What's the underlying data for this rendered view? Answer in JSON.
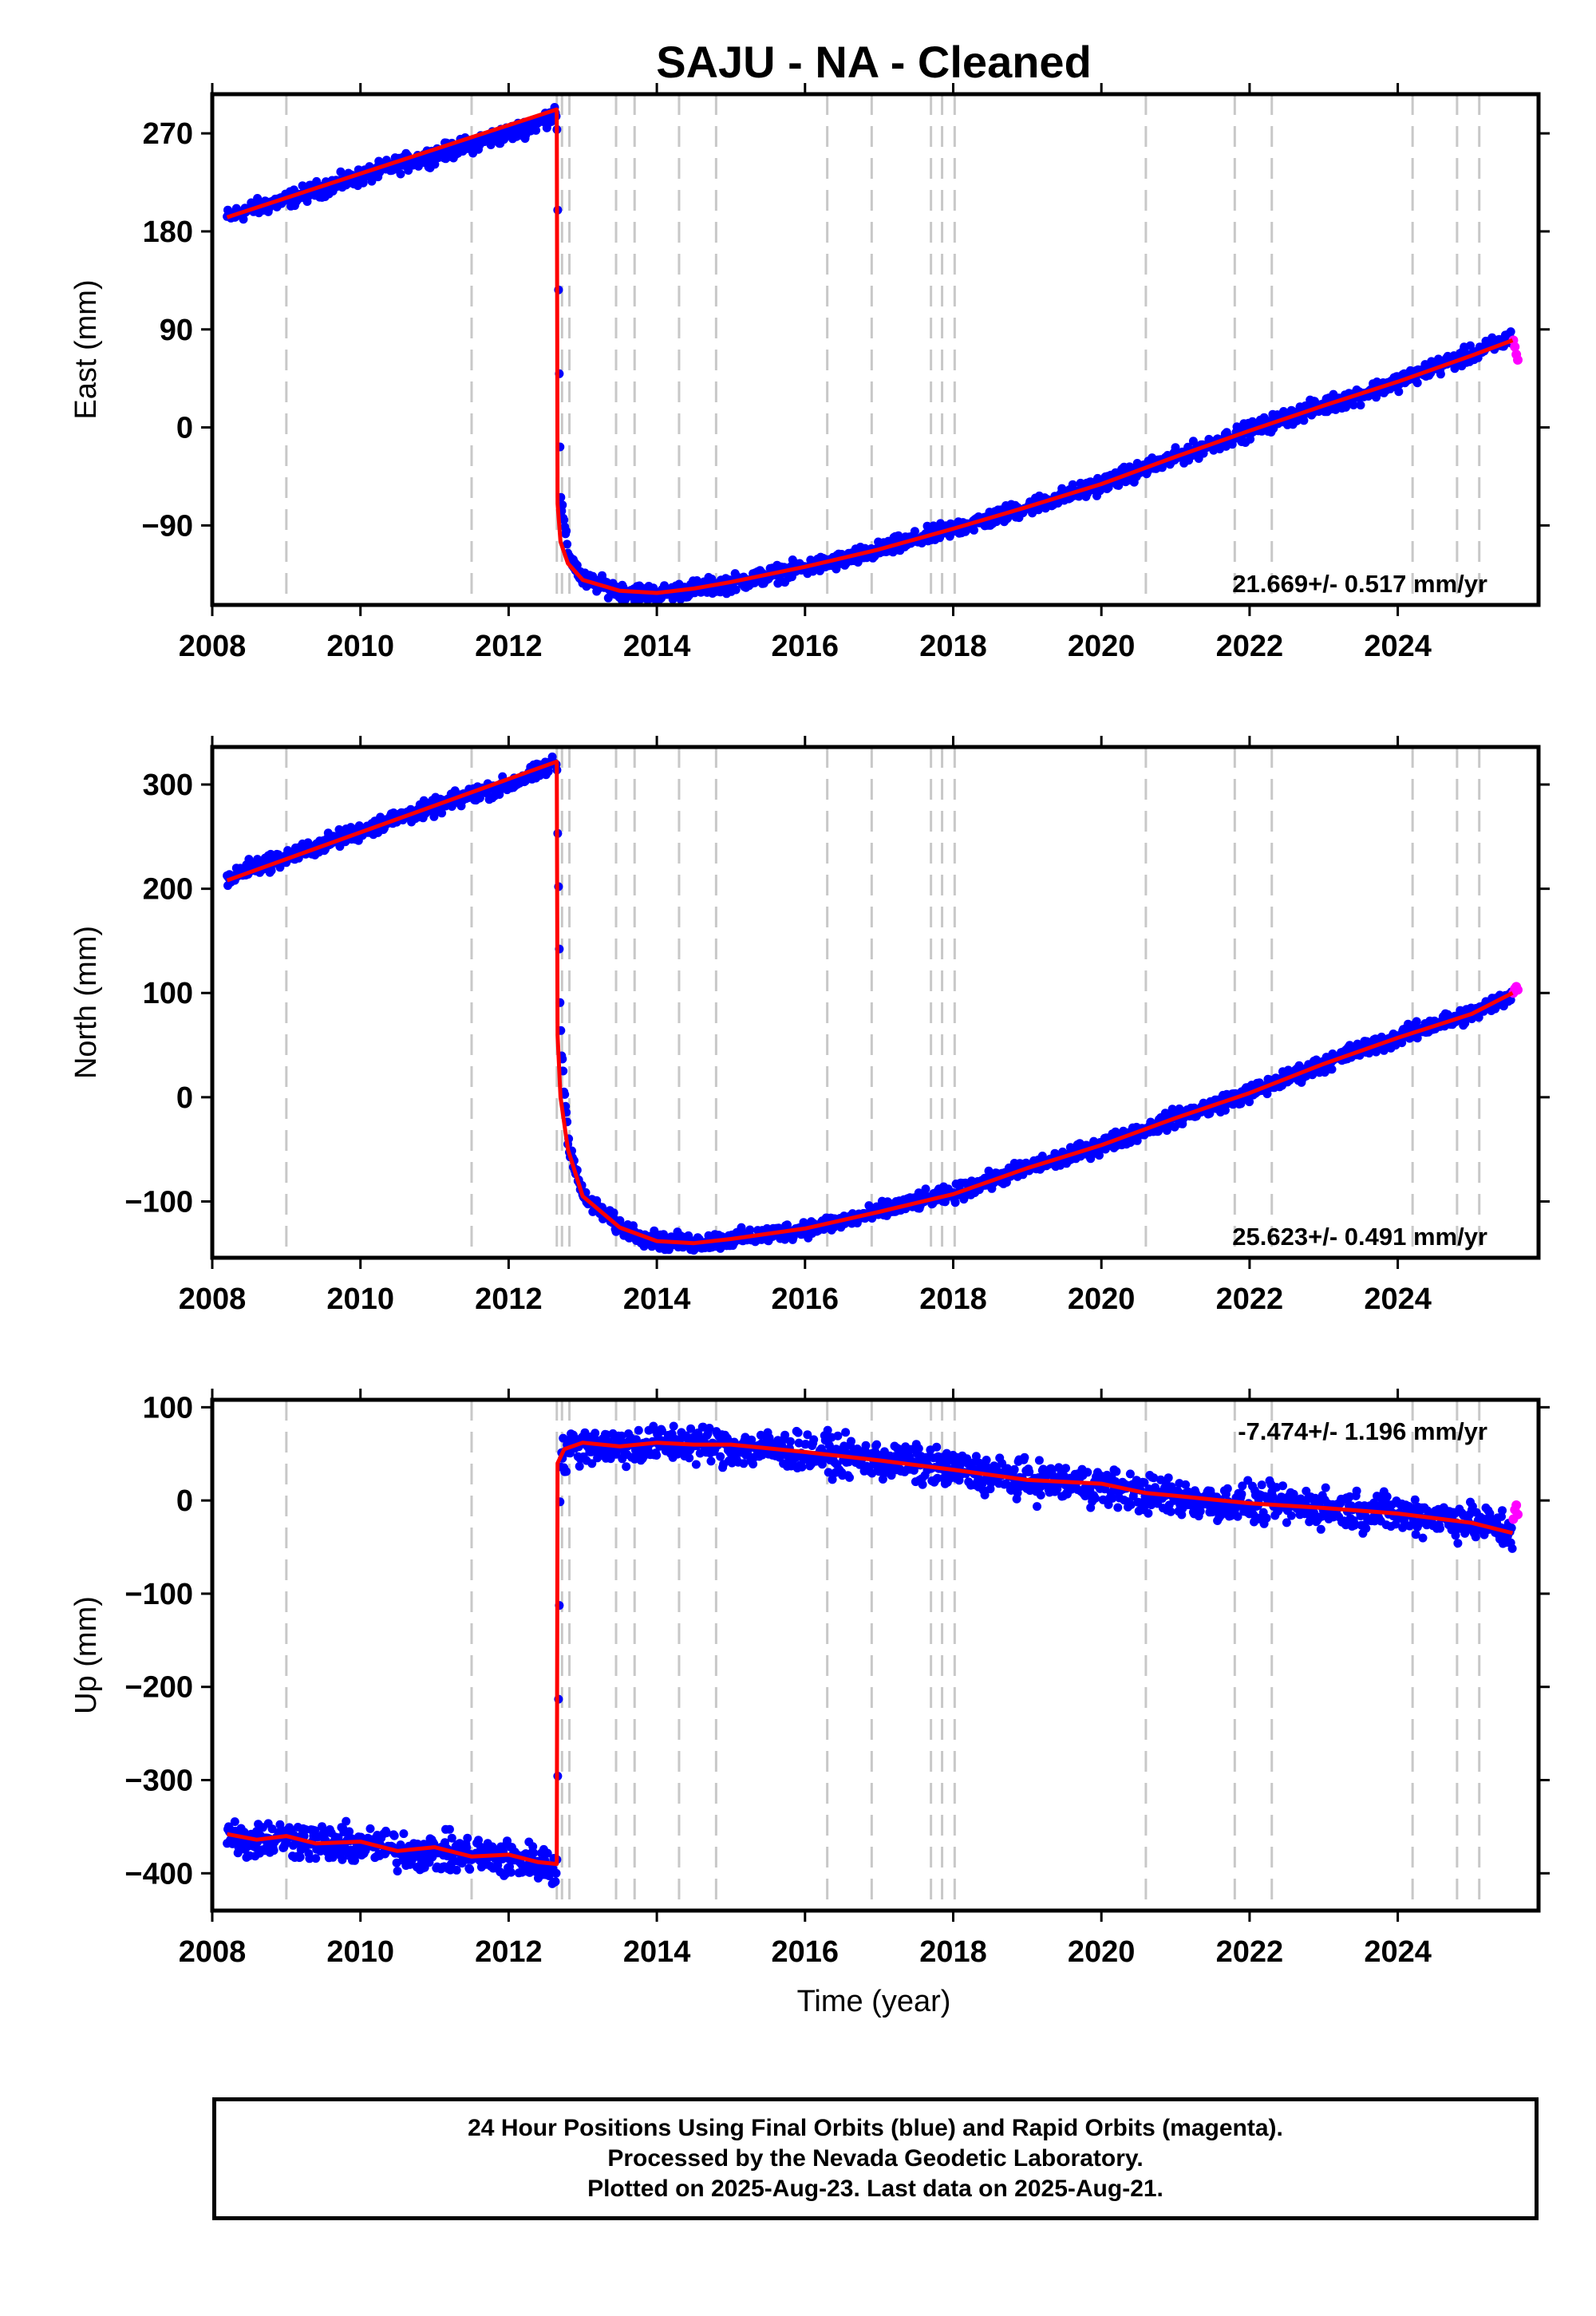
{
  "title": "SAJU  - NA - Cleaned",
  "xlabel": "Time (year)",
  "colors": {
    "final": "#0000ff",
    "rapid": "#ff00ff",
    "model": "#ff0000",
    "steps": "#c8c8c8"
  },
  "footer": [
    "24 Hour Positions Using Final Orbits (blue) and Rapid Orbits (magenta).",
    "Processed by the Nevada Geodetic Laboratory.",
    "Plotted on 2025-Aug-23. Last data on 2025-Aug-21."
  ],
  "chart_data": [
    {
      "type": "scatter",
      "ylabel": "East (mm)",
      "rate_text": "21.669+/- 0.517 mm/yr",
      "xlim": [
        2008.0,
        2025.9
      ],
      "ylim": [
        -163,
        306
      ],
      "xticks": [
        2008,
        2010,
        2012,
        2014,
        2016,
        2018,
        2020,
        2022,
        2024
      ],
      "yticks": [
        -90,
        0,
        90,
        180,
        270
      ],
      "step_lines": [
        2009.0,
        2011.5,
        2012.65,
        2012.72,
        2012.82,
        2013.45,
        2013.7,
        2014.3,
        2014.8,
        2016.3,
        2016.9,
        2017.7,
        2017.85,
        2018.02,
        2020.6,
        2021.8,
        2022.3,
        2024.2,
        2024.8,
        2025.1
      ],
      "series": [
        {
          "role": "final",
          "x": [
            2008.2,
            2008.5,
            2009.0,
            2009.5,
            2010.0,
            2010.5,
            2011.0,
            2011.5,
            2012.0,
            2012.4,
            2012.6,
            2012.65,
            2012.7,
            2012.8,
            2013.0,
            2013.5,
            2014.0,
            2014.5,
            2015.0,
            2015.5,
            2016.0,
            2016.5,
            2017.0,
            2017.5,
            2018.0,
            2018.5,
            2019.0,
            2019.5,
            2020.0,
            2020.5,
            2021.0,
            2021.5,
            2022.0,
            2022.5,
            2023.0,
            2023.5,
            2024.0,
            2024.5,
            2025.0,
            2025.4,
            2025.55
          ],
          "y": [
            193,
            200,
            209,
            220,
            230,
            241,
            250,
            260,
            270,
            279,
            288,
            292,
            -65,
            -115,
            -140,
            -150,
            -153,
            -148,
            -143,
            -136,
            -129,
            -122,
            -113,
            -103,
            -93,
            -84,
            -73,
            -63,
            -52,
            -40,
            -28,
            -15,
            -3,
            9,
            20,
            30,
            42,
            55,
            67,
            78,
            84
          ]
        },
        {
          "role": "rapid",
          "x": [
            2025.56,
            2025.58,
            2025.6,
            2025.62
          ],
          "y": [
            80,
            74,
            67,
            62
          ]
        },
        {
          "role": "model",
          "x": [
            2008.2,
            2012.65,
            2012.66,
            2012.7,
            2012.8,
            2013.0,
            2013.5,
            2014.0,
            2014.5,
            2015.0,
            2016.0,
            2017.0,
            2018.0,
            2019.0,
            2020.0,
            2021.0,
            2022.0,
            2023.0,
            2024.0,
            2025.0,
            2025.55
          ],
          "y": [
            193,
            292,
            -70,
            -105,
            -125,
            -140,
            -150,
            -152,
            -148,
            -142,
            -128,
            -112,
            -93,
            -73,
            -52,
            -27,
            -3,
            20,
            42,
            66,
            80
          ]
        }
      ]
    },
    {
      "type": "scatter",
      "ylabel": "North (mm)",
      "rate_text": "25.623+/- 0.491 mm/yr",
      "xlim": [
        2008.0,
        2025.9
      ],
      "ylim": [
        -154,
        336
      ],
      "xticks": [
        2008,
        2010,
        2012,
        2014,
        2016,
        2018,
        2020,
        2022,
        2024
      ],
      "yticks": [
        -100,
        0,
        100,
        200,
        300
      ],
      "step_lines": [
        2009.0,
        2011.5,
        2012.65,
        2012.72,
        2012.82,
        2013.45,
        2013.7,
        2014.3,
        2014.8,
        2016.3,
        2016.9,
        2017.7,
        2017.85,
        2018.02,
        2020.6,
        2021.8,
        2022.3,
        2024.2,
        2024.8,
        2025.1
      ],
      "series": [
        {
          "role": "final",
          "x": [
            2008.2,
            2008.5,
            2009.0,
            2009.5,
            2010.0,
            2010.5,
            2011.0,
            2011.5,
            2012.0,
            2012.4,
            2012.6,
            2012.65,
            2012.7,
            2012.8,
            2013.0,
            2013.5,
            2014.0,
            2014.5,
            2015.0,
            2015.5,
            2016.0,
            2016.5,
            2017.0,
            2017.5,
            2018.0,
            2018.5,
            2019.0,
            2019.5,
            2020.0,
            2020.5,
            2021.0,
            2021.5,
            2022.0,
            2022.5,
            2023.0,
            2023.5,
            2024.0,
            2024.5,
            2025.0,
            2025.4,
            2025.55
          ],
          "y": [
            208,
            220,
            230,
            243,
            255,
            268,
            278,
            290,
            300,
            312,
            320,
            322,
            60,
            -40,
            -95,
            -125,
            -138,
            -140,
            -136,
            -132,
            -126,
            -119,
            -110,
            -100,
            -93,
            -80,
            -68,
            -58,
            -46,
            -33,
            -20,
            -8,
            4,
            18,
            32,
            46,
            57,
            70,
            80,
            93,
            100
          ]
        },
        {
          "role": "rapid",
          "x": [
            2025.56,
            2025.58,
            2025.6,
            2025.62
          ],
          "y": [
            100,
            104,
            106,
            103
          ]
        },
        {
          "role": "model",
          "x": [
            2008.2,
            2012.65,
            2012.66,
            2012.7,
            2012.8,
            2013.0,
            2013.5,
            2014.0,
            2014.5,
            2015.0,
            2016.0,
            2017.0,
            2018.0,
            2019.0,
            2020.0,
            2021.0,
            2022.0,
            2023.0,
            2024.0,
            2025.0,
            2025.55
          ],
          "y": [
            208,
            322,
            60,
            0,
            -50,
            -95,
            -125,
            -138,
            -140,
            -136,
            -126,
            -110,
            -93,
            -68,
            -46,
            -20,
            4,
            32,
            57,
            80,
            100
          ]
        }
      ]
    },
    {
      "type": "scatter",
      "ylabel": "Up (mm)",
      "rate_text": "-7.474+/- 1.196 mm/yr",
      "xlim": [
        2008.0,
        2025.9
      ],
      "ylim": [
        -440,
        108
      ],
      "xticks": [
        2008,
        2010,
        2012,
        2014,
        2016,
        2018,
        2020,
        2022,
        2024
      ],
      "yticks": [
        -400,
        -300,
        -200,
        -100,
        0,
        100
      ],
      "step_lines": [
        2009.0,
        2011.5,
        2012.65,
        2012.72,
        2012.82,
        2013.45,
        2013.7,
        2014.3,
        2014.8,
        2016.3,
        2016.9,
        2017.7,
        2017.85,
        2018.02,
        2020.6,
        2021.8,
        2022.3,
        2024.2,
        2024.8,
        2025.1
      ],
      "series": [
        {
          "role": "final",
          "x": [
            2008.2,
            2008.5,
            2009.0,
            2009.5,
            2010.0,
            2010.5,
            2011.0,
            2011.5,
            2012.0,
            2012.4,
            2012.6,
            2012.65,
            2012.7,
            2012.8,
            2013.0,
            2013.5,
            2014.0,
            2014.5,
            2015.0,
            2015.5,
            2016.0,
            2016.5,
            2017.0,
            2017.5,
            2018.0,
            2018.5,
            2019.0,
            2019.5,
            2020.0,
            2020.5,
            2021.0,
            2021.5,
            2022.0,
            2022.5,
            2023.0,
            2023.5,
            2024.0,
            2024.5,
            2025.0,
            2025.4,
            2025.55
          ],
          "y": [
            -358,
            -364,
            -362,
            -368,
            -370,
            -375,
            -378,
            -380,
            -385,
            -388,
            -395,
            -398,
            40,
            55,
            60,
            58,
            60,
            62,
            57,
            55,
            52,
            47,
            43,
            38,
            33,
            27,
            22,
            18,
            16,
            8,
            3,
            -2,
            -4,
            -5,
            -8,
            -10,
            -13,
            -17,
            -23,
            -30,
            -34
          ]
        },
        {
          "role": "rapid",
          "x": [
            2025.56,
            2025.58,
            2025.6,
            2025.62
          ],
          "y": [
            -20,
            -10,
            -5,
            -15
          ]
        },
        {
          "role": "model",
          "x": [
            2008.2,
            2008.6,
            2009.0,
            2009.4,
            2010.0,
            2010.5,
            2011.0,
            2011.5,
            2012.0,
            2012.4,
            2012.65,
            2012.66,
            2012.75,
            2013.0,
            2013.5,
            2014.0,
            2014.5,
            2015.0,
            2016.0,
            2017.0,
            2018.0,
            2019.0,
            2020.0,
            2020.6,
            2021.0,
            2022.0,
            2023.0,
            2024.0,
            2025.0,
            2025.55
          ],
          "y": [
            -358,
            -364,
            -360,
            -368,
            -366,
            -376,
            -372,
            -382,
            -380,
            -388,
            -390,
            40,
            55,
            62,
            58,
            62,
            60,
            60,
            52,
            43,
            33,
            22,
            18,
            8,
            5,
            -3,
            -8,
            -14,
            -24,
            -35
          ]
        }
      ]
    }
  ]
}
